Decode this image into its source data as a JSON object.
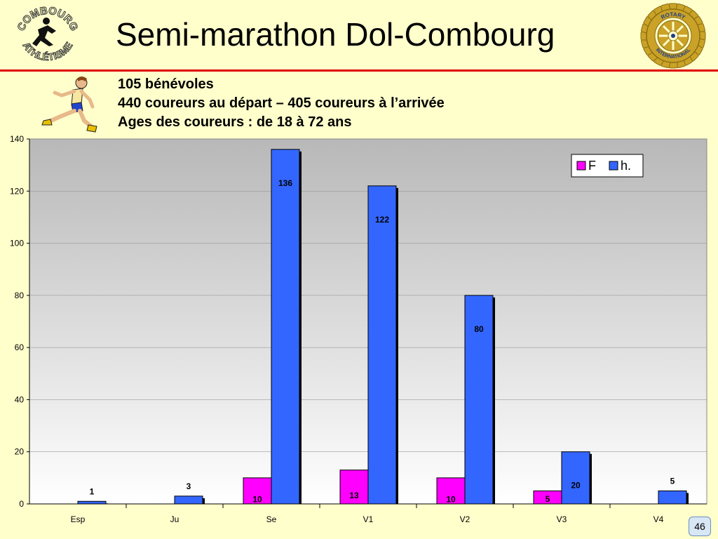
{
  "slide": {
    "title": "Semi-marathon Dol-Combourg",
    "info_lines": [
      "105 bénévoles",
      "440 coureurs au départ – 405 coureurs à l’arrivée",
      "Ages des coureurs : de 18 à 72 ans"
    ],
    "page_number": "46"
  },
  "logos": {
    "left_text_top": "COMBOURG",
    "left_text_bottom": "ATHLÉTISME",
    "right_text_top": "ROTARY",
    "right_text_bottom": "INTERNATIONAL"
  },
  "colors": {
    "title_rule": "#E00000",
    "series_f": "#FF00FF",
    "series_h": "#3366FF",
    "background": "#FFFFCC"
  },
  "chart_data": {
    "type": "bar",
    "categories": [
      "Esp",
      "Ju",
      "Se",
      "V1",
      "V2",
      "V3",
      "V4"
    ],
    "series": [
      {
        "name": "F",
        "values": [
          0,
          0,
          10,
          13,
          10,
          5,
          0
        ],
        "labels": [
          "",
          "",
          "10",
          "13",
          "10",
          "5",
          ""
        ]
      },
      {
        "name": "h.",
        "values": [
          1,
          3,
          136,
          122,
          80,
          20,
          5
        ],
        "labels": [
          "1",
          "3",
          "136",
          "122",
          "80",
          "20",
          "5"
        ]
      }
    ],
    "ylim": [
      0,
      140
    ],
    "yticks": [
      0,
      20,
      40,
      60,
      80,
      100,
      120,
      140
    ],
    "grid": true,
    "legend": "top-right"
  }
}
